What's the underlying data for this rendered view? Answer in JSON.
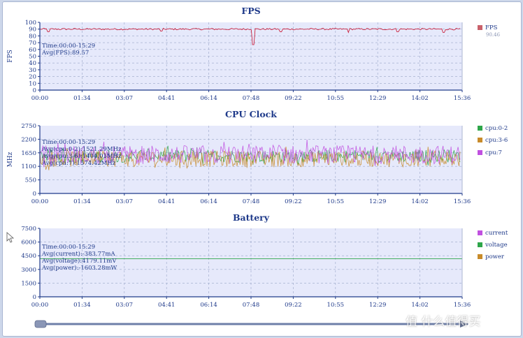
{
  "colors": {
    "plot_bg": "#e6e9fb",
    "grid": "#9aa6c8",
    "axis": "#1f3a8a",
    "text": "#1f3a8a",
    "fps": "#c8102e",
    "fps_legend": "#c9616b",
    "cpu0": "#2ea64a",
    "cpu3": "#c88b2a",
    "cpu7": "#c050e0",
    "voltage_line": "#2ea64a"
  },
  "x_ticks": [
    "00:00",
    "01:34",
    "03:07",
    "04:41",
    "06:14",
    "07:48",
    "09:22",
    "10:55",
    "12:29",
    "14:02",
    "15:36"
  ],
  "watermark": "值 什么值得买",
  "chart_data": [
    {
      "type": "line",
      "title": "FPS",
      "ylabel": "FPS",
      "ylim": [
        0,
        100
      ],
      "yticks": [
        "0",
        "10",
        "20",
        "30",
        "40",
        "50",
        "60",
        "70",
        "80",
        "90",
        "100"
      ],
      "x_range": [
        "00:00",
        "15:36"
      ],
      "annotations": [
        "Time:00:00-15:29",
        "Avg(FPS):89.57"
      ],
      "legend_position": "right",
      "legend": [
        {
          "name": "FPS",
          "sub": "90.46",
          "color": "#c9616b"
        }
      ],
      "series": [
        {
          "name": "FPS",
          "color": "#c8102e",
          "base": 90,
          "noise": 1.2,
          "dips": [
            {
              "t": 7.9,
              "value": 67
            },
            {
              "t": 0.3,
              "value": 86
            },
            {
              "t": 4.5,
              "value": 87
            },
            {
              "t": 8.9,
              "value": 86
            },
            {
              "t": 11.4,
              "value": 85
            },
            {
              "t": 13.2,
              "value": 86
            },
            {
              "t": 14.9,
              "value": 85
            }
          ]
        }
      ]
    },
    {
      "type": "line",
      "title": "CPU Clock",
      "ylabel": "MHz",
      "ylim": [
        0,
        2750
      ],
      "yticks": [
        "0",
        "550",
        "1100",
        "1650",
        "2200",
        "2750"
      ],
      "x_range": [
        "00:00",
        "15:36"
      ],
      "annotations": [
        "Time:00:00-15:29",
        "Avg(cpu:0-2):1521.29MHz",
        "Avg(cpu:3-6):1404.01MHz",
        "Avg(cpu:7):1574.42MHz"
      ],
      "legend_position": "right",
      "legend": [
        {
          "name": "cpu:0-2",
          "color": "#2ea64a"
        },
        {
          "name": "cpu:3-6",
          "color": "#c88b2a"
        },
        {
          "name": "cpu:7",
          "color": "#c050e0"
        }
      ],
      "series": [
        {
          "name": "cpu:0-2",
          "color": "#2ea64a",
          "mean": 1521,
          "spread": 260
        },
        {
          "name": "cpu:3-6",
          "color": "#c88b2a",
          "mean": 1404,
          "spread": 330
        },
        {
          "name": "cpu:7",
          "color": "#c050e0",
          "mean": 1574,
          "spread": 380
        }
      ]
    },
    {
      "type": "line",
      "title": "Battery",
      "ylabel": "",
      "ylim": [
        0,
        7500
      ],
      "yticks": [
        "0",
        "1500",
        "3000",
        "4500",
        "6000",
        "7500"
      ],
      "x_range": [
        "00:00",
        "15:36"
      ],
      "annotations": [
        "Time:00:00-15:29",
        "Avg(current):-383.77mA",
        "Avg(voltage):4179.11mV",
        "Avg(power):-1603.28mW"
      ],
      "legend_position": "right",
      "legend": [
        {
          "name": "current",
          "color": "#c050e0"
        },
        {
          "name": "voltage",
          "color": "#2ea64a"
        },
        {
          "name": "power",
          "color": "#c88b2a"
        }
      ],
      "series": [
        {
          "name": "voltage",
          "color": "#2ea64a",
          "value": 4179
        }
      ]
    }
  ]
}
